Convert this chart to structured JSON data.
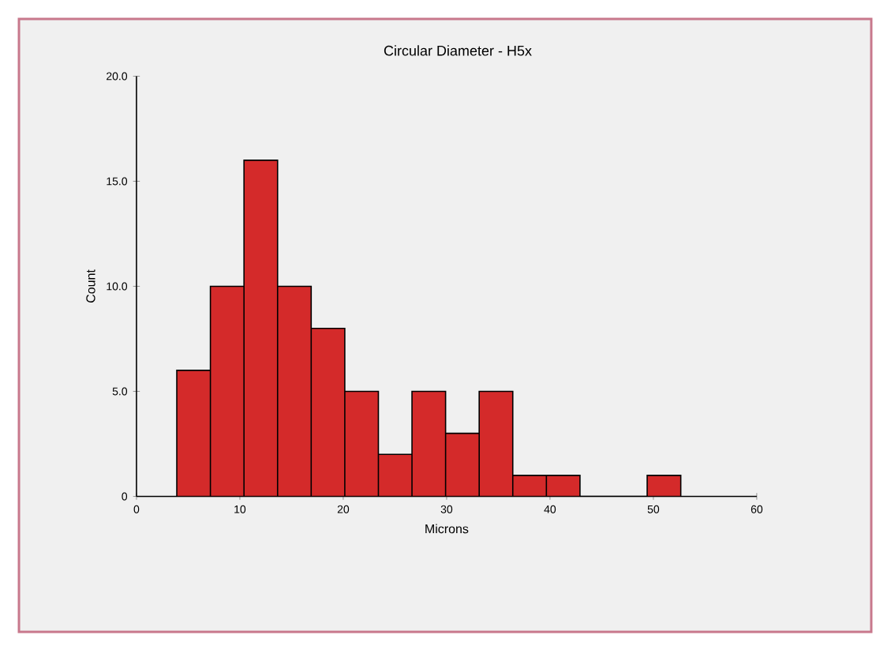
{
  "chart_data": {
    "type": "histogram",
    "title": "Circular Diameter - H5x",
    "xlabel": "Microns",
    "ylabel": "Count",
    "bins": [
      3.9,
      7.15,
      10.4,
      13.65,
      16.9,
      20.15,
      23.4,
      26.65,
      29.9,
      33.15,
      36.4,
      39.65,
      42.9,
      46.15,
      49.4,
      52.65
    ],
    "values": [
      6,
      10,
      16,
      10,
      8,
      5,
      2,
      5,
      3,
      5,
      1,
      1,
      0,
      0,
      1
    ],
    "color": "#d42a2a",
    "xlim": [
      0,
      60
    ],
    "xticks": [
      0,
      10,
      20,
      30,
      40,
      50,
      60
    ],
    "ylim": [
      0,
      20
    ],
    "yticks": [
      {
        "value": 0,
        "label": "0"
      },
      {
        "value": 5,
        "label": "5.0"
      },
      {
        "value": 10,
        "label": "10.0"
      },
      {
        "value": 15,
        "label": "15.0"
      },
      {
        "value": 20,
        "label": "20.0"
      }
    ],
    "grid": false
  }
}
